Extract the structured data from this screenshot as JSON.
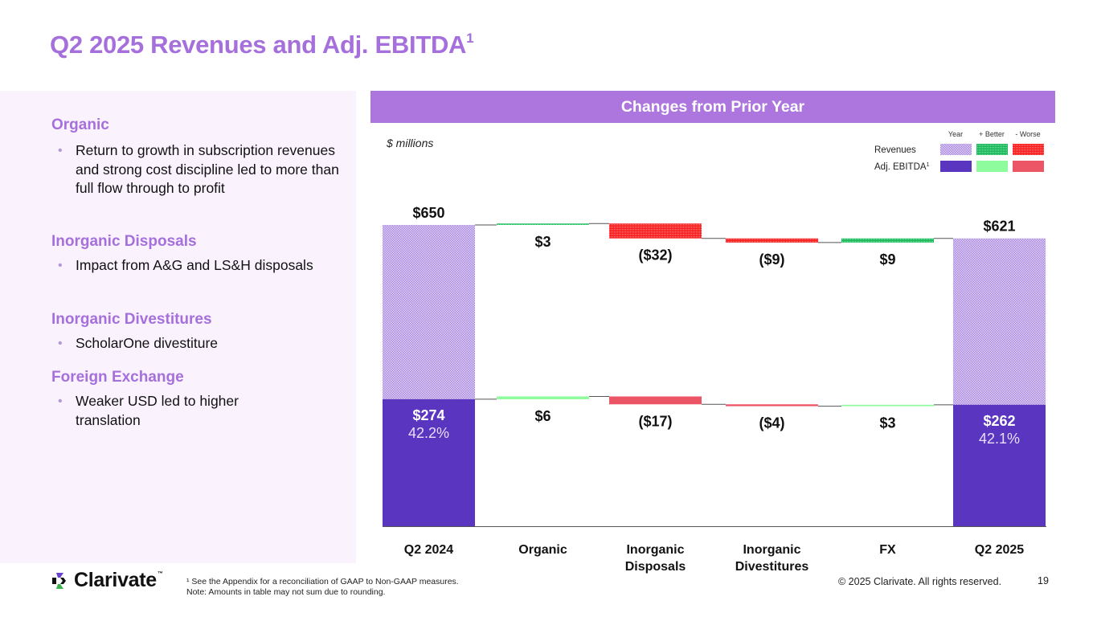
{
  "page": {
    "title": "Q2 2025 Revenues and Adj. EBITDA",
    "title_superscript": "1"
  },
  "left_panel": {
    "sections": [
      {
        "heading": "Organic",
        "bullets": [
          "Return to growth in subscription revenues and strong cost discipline led to more than full flow through to profit"
        ]
      },
      {
        "heading": "Inorganic Disposals",
        "bullets": [
          "Impact from A&G and LS&H disposals"
        ]
      },
      {
        "heading": "Inorganic Divestitures",
        "bullets": [
          "ScholarOne divestiture"
        ]
      },
      {
        "heading": "Foreign Exchange",
        "bullets": [
          "Weaker USD led to higher translation"
        ]
      }
    ]
  },
  "chart_panel": {
    "header": "Changes from Prior Year",
    "units": "$ millions",
    "legend": {
      "column_headers": [
        "Year",
        "+ Better",
        "- Worse"
      ],
      "rows": [
        {
          "label": "Revenues",
          "superscript": ""
        },
        {
          "label": "Adj. EBITDA",
          "superscript": "1"
        }
      ]
    }
  },
  "chart_data": {
    "type": "bar",
    "subtype": "waterfall",
    "title": "Changes from Prior Year",
    "ylabel": "$ millions",
    "xlabel": "",
    "categories": [
      "Q2 2024",
      "Organic",
      "Inorganic Disposals",
      "Inorganic Divestitures",
      "FX",
      "Q2 2025"
    ],
    "category_lines": [
      [
        "Q2 2024"
      ],
      [
        "Organic"
      ],
      [
        "Inorganic",
        "Disposals"
      ],
      [
        "Inorganic",
        "Divestitures"
      ],
      [
        "FX"
      ],
      [
        "Q2 2025"
      ]
    ],
    "series": [
      {
        "name": "Revenues",
        "kinds": [
          "total",
          "delta",
          "delta",
          "delta",
          "delta",
          "total"
        ],
        "values": [
          650,
          3,
          -32,
          -9,
          9,
          621
        ],
        "labels": [
          "$650",
          "$3",
          "($32)",
          "($9)",
          "$9",
          "$621"
        ]
      },
      {
        "name": "Adj. EBITDA",
        "kinds": [
          "total",
          "delta",
          "delta",
          "delta",
          "delta",
          "total"
        ],
        "values": [
          274,
          6,
          -17,
          -4,
          3,
          262
        ],
        "labels": [
          "$274",
          "$6",
          "($17)",
          "($4)",
          "$3",
          "$262"
        ],
        "margins": [
          "42.2%",
          "",
          "",
          "",
          "",
          "42.1%"
        ]
      }
    ],
    "ylim": [
      0,
      670
    ],
    "grid": false,
    "legend_position": "top-right",
    "colors": {
      "revenue_year": "#c8b0ec",
      "revenue_better": "#2ec46e",
      "revenue_worse": "#ff2a2a",
      "ebitda_year": "#5a35c0",
      "ebitda_better": "#8efc9c",
      "ebitda_worse": "#ec5565"
    }
  },
  "footer": {
    "logo_text": "Clarivate",
    "logo_tm": "™",
    "footnote_line1": "¹ See the Appendix for a reconciliation of GAAP to Non-GAAP measures.",
    "footnote_line2": "Note: Amounts in table may not sum due to rounding.",
    "copyright": "© 2025 Clarivate. All rights reserved.",
    "page_number": "19"
  }
}
